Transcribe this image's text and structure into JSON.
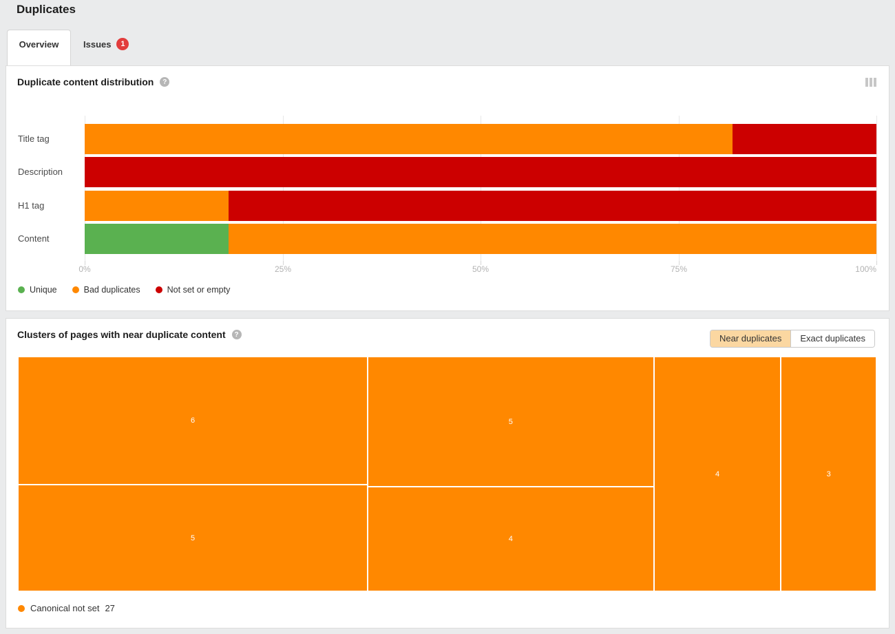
{
  "page": {
    "title": "Duplicates"
  },
  "tabs": {
    "overview": "Overview",
    "issues": "Issues",
    "issues_badge": "1"
  },
  "icons": {
    "help_glyph": "?"
  },
  "cards": {
    "clusters": {
      "toggle": {
        "near": "Near duplicates",
        "exact": "Exact duplicates",
        "active": "near"
      }
    }
  },
  "chart_data": [
    {
      "type": "bar",
      "orientation": "horizontal",
      "stacked": true,
      "title": "Duplicate content distribution",
      "categories": [
        "Title tag",
        "Description",
        "H1 tag",
        "Content"
      ],
      "total": 33,
      "series": [
        {
          "name": "Unique",
          "color": "#5ab150",
          "values": [
            0,
            0,
            0,
            6
          ]
        },
        {
          "name": "Bad duplicates",
          "color": "#ff8800",
          "values": [
            27,
            0,
            6,
            27
          ]
        },
        {
          "name": "Not set or empty",
          "color": "#cc0000",
          "values": [
            6,
            33,
            27,
            0
          ]
        }
      ],
      "x_ticks": [
        "0%",
        "25%",
        "50%",
        "75%",
        "100%"
      ],
      "xlim": [
        0,
        100
      ],
      "grid": true,
      "legend_position": "bottom"
    },
    {
      "type": "treemap",
      "title": "Clusters of pages with near duplicate content",
      "values": [
        6,
        5,
        5,
        4,
        4,
        3
      ],
      "columns": [
        [
          6,
          5
        ],
        [
          5,
          4
        ],
        [
          4
        ],
        [
          3
        ]
      ],
      "total": 27,
      "color": "#ff8800",
      "legend_label": "Canonical not set",
      "legend_value": "27"
    }
  ]
}
